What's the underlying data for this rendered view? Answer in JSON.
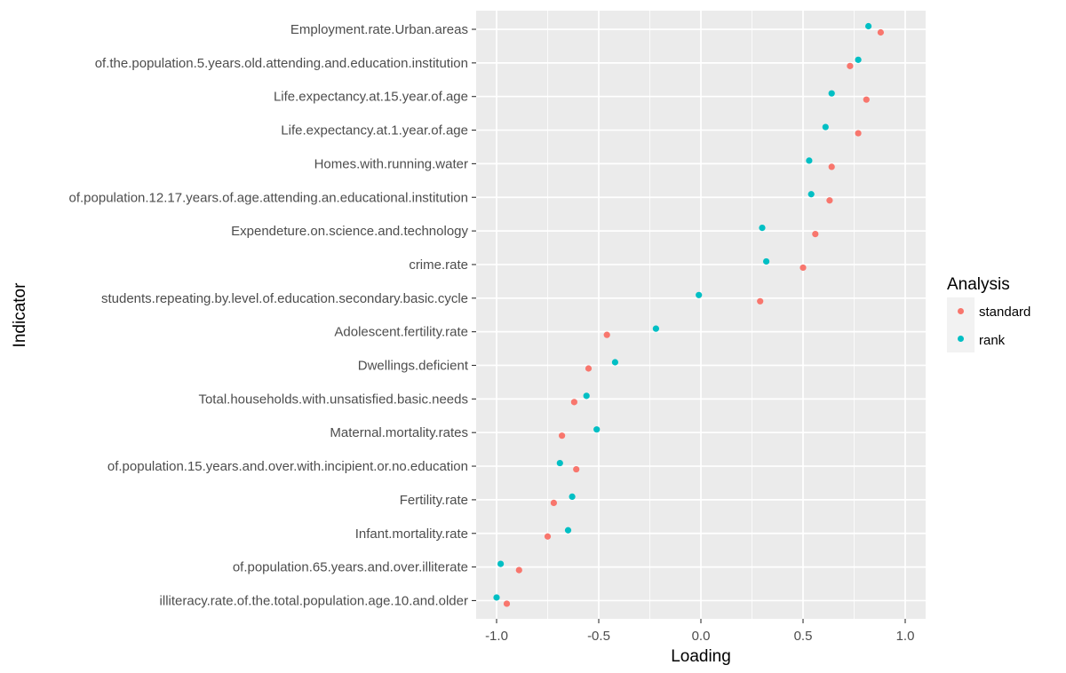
{
  "chart_data": {
    "type": "scatter",
    "title": "",
    "xlabel": "Loading",
    "ylabel": "Indicator",
    "xlim": [
      -1.1,
      1.1
    ],
    "xticks": [
      -1.0,
      -0.5,
      0.0,
      0.5,
      1.0
    ],
    "xtick_labels": [
      "-1.0",
      "-0.5",
      "0.0",
      "0.5",
      "1.0"
    ],
    "grid": true,
    "legend": {
      "title": "Analysis",
      "position": "right",
      "entries": [
        {
          "name": "standard",
          "color": "#F8766D"
        },
        {
          "name": "rank",
          "color": "#00BFC4"
        }
      ]
    },
    "categories": [
      "Employment.rate.Urban.areas",
      "of.the.population.5.years.old.attending.and.education.institution",
      "Life.expectancy.at.15.year.of.age",
      "Life.expectancy.at.1.year.of.age",
      "Homes.with.running.water",
      "of.population.12.17.years.of.age.attending.an.educational.institution",
      "Expendeture.on.science.and.technology",
      "crime.rate",
      "students.repeating.by.level.of.education.secondary.basic.cycle",
      "Adolescent.fertility.rate",
      "Dwellings.deficient",
      "Total.households.with.unsatisfied.basic.needs",
      "Maternal.mortality.rates",
      "of.population.15.years.and.over.with.incipient.or.no.education",
      "Fertility.rate",
      "Infant.mortality.rate",
      "of.population.65.years.and.over.illiterate",
      "illiteracy.rate.of.the.total.population.age.10.and.older"
    ],
    "series": [
      {
        "name": "standard",
        "color": "#F8766D",
        "values": [
          0.88,
          0.73,
          0.81,
          0.77,
          0.64,
          0.63,
          0.56,
          0.5,
          0.29,
          -0.46,
          -0.55,
          -0.62,
          -0.68,
          -0.61,
          -0.72,
          -0.75,
          -0.89,
          -0.95
        ]
      },
      {
        "name": "rank",
        "color": "#00BFC4",
        "values": [
          0.82,
          0.77,
          0.64,
          0.61,
          0.53,
          0.54,
          0.3,
          0.32,
          -0.01,
          -0.22,
          -0.42,
          -0.56,
          -0.51,
          -0.69,
          -0.63,
          -0.65,
          -0.98,
          -1.0
        ]
      }
    ]
  }
}
